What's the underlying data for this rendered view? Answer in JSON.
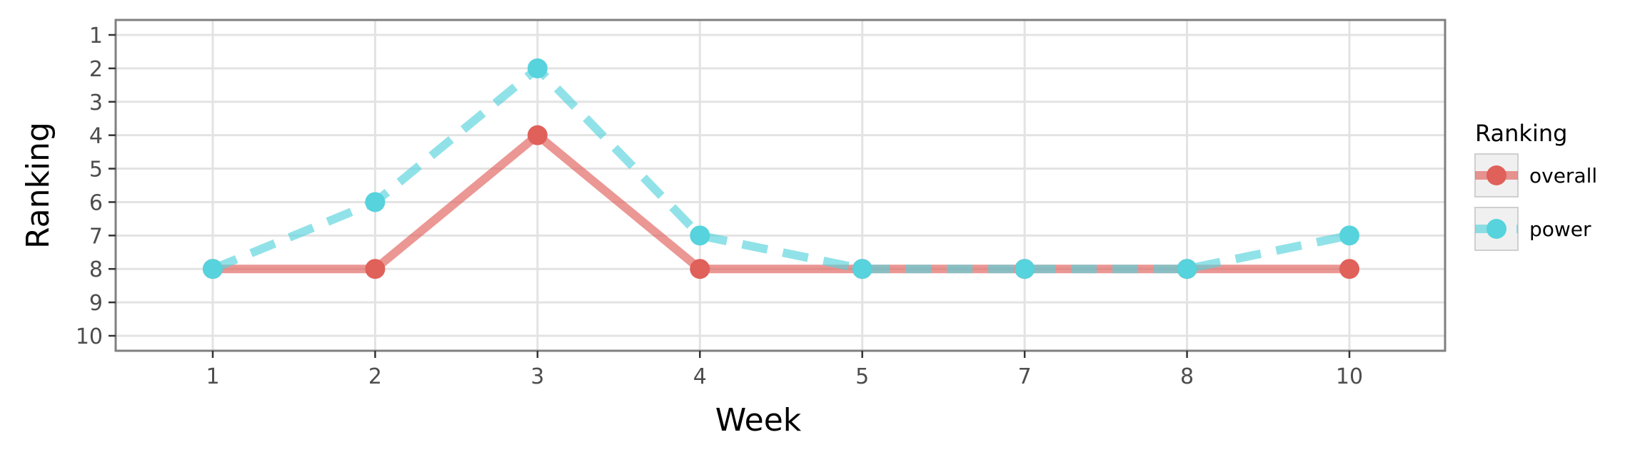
{
  "chart_data": {
    "type": "line",
    "title": "",
    "xlabel": "Week",
    "ylabel": "Ranking",
    "categories": [
      "1",
      "2",
      "3",
      "4",
      "5",
      "7",
      "8",
      "10"
    ],
    "y_ticks": [
      "1",
      "2",
      "3",
      "4",
      "5",
      "6",
      "7",
      "8",
      "9",
      "10"
    ],
    "ylim": [
      1,
      10
    ],
    "y_reversed": true,
    "grid": true,
    "legend": {
      "title": "Ranking",
      "position": "right"
    },
    "series": [
      {
        "name": "overall",
        "values": [
          8,
          8,
          4,
          8,
          8,
          8,
          8,
          8
        ],
        "color": "#e0605a",
        "line_style": "solid"
      },
      {
        "name": "power",
        "values": [
          8,
          6,
          2,
          7,
          8,
          8,
          8,
          7
        ],
        "color": "#56d3dc",
        "line_style": "dashed"
      }
    ]
  }
}
